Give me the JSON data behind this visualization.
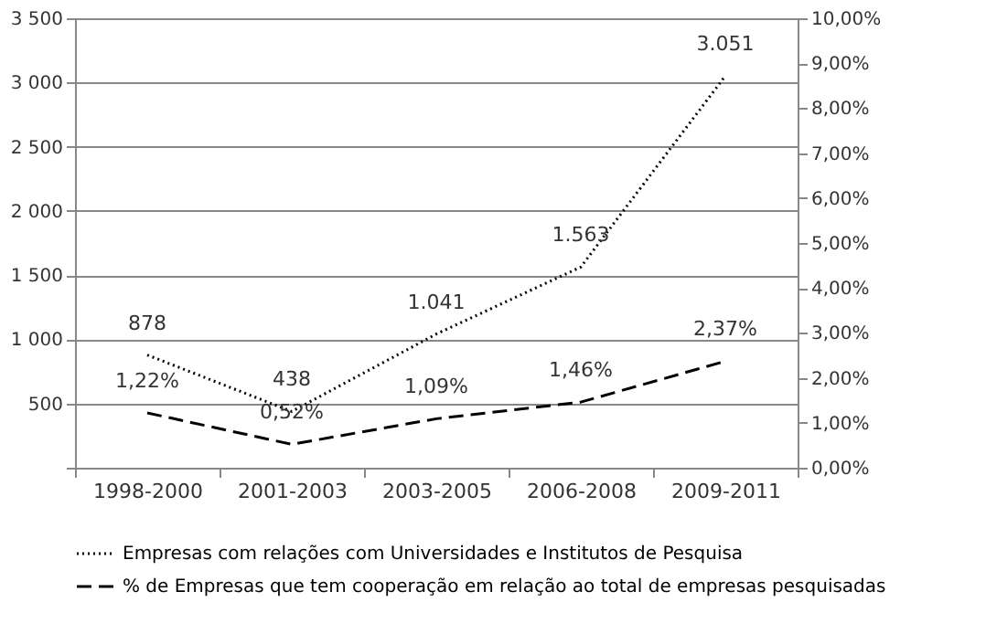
{
  "chart_data": {
    "type": "line",
    "categories": [
      "1998-2000",
      "2001-2003",
      "2003-2005",
      "2006-2008",
      "2009-2011"
    ],
    "series": [
      {
        "name": "Empresas com relações com Universidades e Institutos de Pesquisa",
        "color": "#000000",
        "line_style": "dotted",
        "values": [
          878,
          438,
          1041,
          1563,
          3051
        ],
        "value_labels": [
          "878",
          "438",
          "1.041",
          "1.563",
          "3.051"
        ]
      },
      {
        "name": "% de Empresas que tem cooperação em relação ao total de empresas pesquisadas",
        "color": "#000000",
        "line_style": "dashed",
        "axis": "y2",
        "values": [
          1.22,
          0.52,
          1.09,
          1.46,
          2.37
        ],
        "value_labels": [
          "1,22%",
          "0,52%",
          "1,09%",
          "1,46%",
          "2,37%"
        ]
      }
    ],
    "ylim": [
      0,
      3500
    ],
    "yticks": [
      {
        "value": 0,
        "label": null
      },
      500,
      {
        "value": 1000,
        "label": "1 000"
      },
      {
        "value": 1500,
        "label": "1 500"
      },
      {
        "value": 2000,
        "label": "2 000"
      },
      {
        "value": 2500,
        "label": "2 500"
      },
      {
        "value": 3000,
        "label": "3 000"
      },
      {
        "value": 3500,
        "label": "3 500"
      }
    ],
    "y2lim": [
      0,
      10
    ],
    "y2ticks": [
      {
        "value": 0,
        "label": "0,00%"
      },
      {
        "value": 1,
        "label": "1,00%"
      },
      {
        "value": 2,
        "label": "2,00%"
      },
      {
        "value": 3,
        "label": "3,00%"
      },
      {
        "value": 4,
        "label": "4,00%"
      },
      {
        "value": 5,
        "label": "5,00%"
      },
      {
        "value": 6,
        "label": "6,00%"
      },
      {
        "value": 7,
        "label": "7,00%"
      },
      {
        "value": 8,
        "label": "8,00%"
      },
      {
        "value": 9,
        "label": "9,00%"
      },
      {
        "value": 10,
        "label": "10,00%"
      }
    ],
    "grid": "y",
    "legend": "bottom"
  }
}
